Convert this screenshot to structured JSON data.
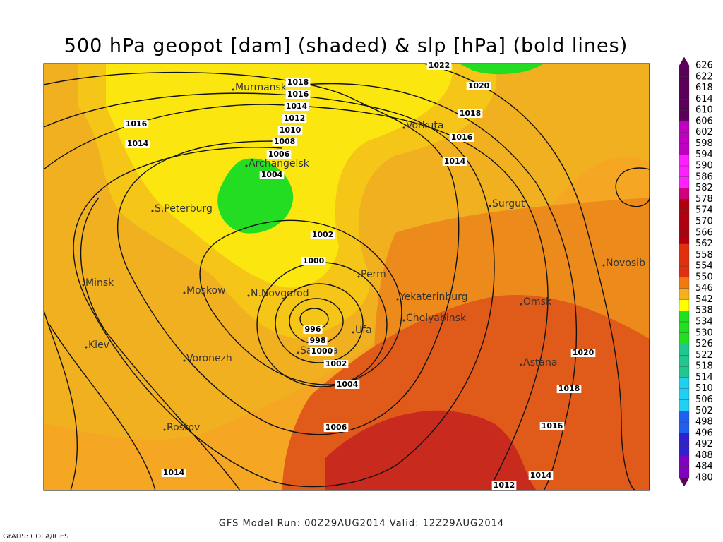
{
  "header": {
    "title": "500 hPa geopot [dam] (shaded) & slp [hPa] (bold lines)"
  },
  "map": {
    "cities": [
      "Murmansk",
      "Vorkuta",
      "Archangelsk",
      "S.Peterburg",
      "Surgut",
      "Novosib",
      "Perm",
      "Minsk",
      "Moskow",
      "N.Novgorod",
      "Yekaterinburg",
      "Omsk",
      "Chelyabinsk",
      "Ufa",
      "Kiev",
      "Samara",
      "Voronezh",
      "Astana",
      "Rostov"
    ],
    "isobar_labels": [
      "1022",
      "1020",
      "1018",
      "1016",
      "1014",
      "1012",
      "1010",
      "1008",
      "1006",
      "1004",
      "1002",
      "1000",
      "996",
      "998",
      "1000",
      "1002",
      "1004",
      "1006",
      "1016",
      "1014",
      "1018",
      "1016",
      "1014",
      "1020",
      "1018",
      "1016",
      "1014",
      "1012",
      "1014"
    ]
  },
  "colorbar": {
    "labels": [
      "626",
      "622",
      "618",
      "614",
      "610",
      "606",
      "602",
      "598",
      "594",
      "590",
      "586",
      "582",
      "578",
      "574",
      "570",
      "566",
      "562",
      "558",
      "554",
      "550",
      "546",
      "542",
      "538",
      "534",
      "530",
      "526",
      "522",
      "518",
      "514",
      "510",
      "506",
      "502",
      "498",
      "496",
      "492",
      "488",
      "484",
      "480"
    ]
  },
  "footer": {
    "run": "GFS Model Run: 00Z29AUG2014 Valid: 12Z29AUG2014",
    "credit": "GrADS: COLA/IGES"
  }
}
